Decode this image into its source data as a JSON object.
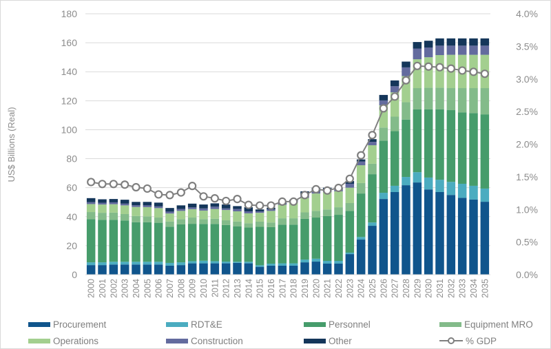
{
  "chart_data": {
    "type": "bar",
    "subtype": "stacked-bar-with-line",
    "title": "",
    "xlabel": "",
    "ylabel": "US$ Billions (Real)",
    "y2label": "",
    "ylim": [
      0,
      180
    ],
    "y2lim": [
      0,
      4.0
    ],
    "yticks": [
      "0",
      "20",
      "40",
      "60",
      "80",
      "100",
      "120",
      "140",
      "160",
      "180"
    ],
    "y2ticks": [
      "0.0%",
      "0.5%",
      "1.0%",
      "1.5%",
      "2.0%",
      "2.5%",
      "3.0%",
      "3.5%",
      "4.0%"
    ],
    "grid": true,
    "legend_position": "bottom",
    "categories": [
      "2000",
      "2001",
      "2002",
      "2003",
      "2004",
      "2005",
      "2006",
      "2007",
      "2008",
      "2009",
      "2010",
      "2011",
      "2012",
      "2013",
      "2014",
      "2015",
      "2016",
      "2017",
      "2018",
      "2019",
      "2020",
      "2021",
      "2022",
      "2023",
      "2024",
      "2025",
      "2026",
      "2027",
      "2028",
      "2029",
      "2030",
      "2031",
      "2032",
      "2033",
      "2034",
      "2035"
    ],
    "series": [
      {
        "name": "Procurement",
        "color": "#10558c",
        "values": [
          6.6,
          6.6,
          7.0,
          7.0,
          7.0,
          7.0,
          7.0,
          6.2,
          6.6,
          7.8,
          7.8,
          7.8,
          7.8,
          8.1,
          7.8,
          5.4,
          6.2,
          6.2,
          6.2,
          8.5,
          9.0,
          7.6,
          7.6,
          14.2,
          24.2,
          33.7,
          52.2,
          57.0,
          61.7,
          63.6,
          58.8,
          57.0,
          55.0,
          53.0,
          51.8,
          50.3
        ]
      },
      {
        "name": "RDT&E",
        "color": "#4bacc0",
        "values": [
          1.9,
          1.9,
          1.9,
          1.9,
          1.9,
          1.9,
          1.9,
          1.9,
          1.9,
          1.5,
          1.8,
          1.5,
          1.2,
          0.8,
          1.1,
          1.1,
          1.4,
          1.6,
          1.6,
          1.9,
          2.0,
          1.9,
          1.9,
          1.0,
          1.8,
          2.3,
          4.3,
          4.3,
          5.7,
          7.1,
          8.2,
          8.5,
          9.0,
          9.7,
          9.5,
          9.1
        ]
      },
      {
        "name": "Personnel",
        "color": "#469c6b",
        "values": [
          29.8,
          29.3,
          28.9,
          28.5,
          27.3,
          27.3,
          26.9,
          25.0,
          26.2,
          25.8,
          25.4,
          25.7,
          25.3,
          24.5,
          23.7,
          26.5,
          25.2,
          26.7,
          26.7,
          28.1,
          28.4,
          30.9,
          31.8,
          28.8,
          30.0,
          33.3,
          36.0,
          37.7,
          39.6,
          43.3,
          47.0,
          48.5,
          49.5,
          49.3,
          50.2,
          51.2
        ]
      },
      {
        "name": "Equipment MRO",
        "color": "#83bb8a",
        "values": [
          4.9,
          4.9,
          5.0,
          4.4,
          4.3,
          4.0,
          3.6,
          3.6,
          3.6,
          4.3,
          3.3,
          3.6,
          3.2,
          3.3,
          2.9,
          3.6,
          3.2,
          4.4,
          4.4,
          4.5,
          4.6,
          4.6,
          5.2,
          5.4,
          7.2,
          7.2,
          9.0,
          10.0,
          12.0,
          14.7,
          15.0,
          15.0,
          15.2,
          16.7,
          17.2,
          18.1
        ]
      },
      {
        "name": "Operations",
        "color": "#a3cf8f",
        "values": [
          5.5,
          5.7,
          5.8,
          6.0,
          6.2,
          6.4,
          6.5,
          5.5,
          5.7,
          5.8,
          5.9,
          6.7,
          7.1,
          7.0,
          6.8,
          6.1,
          8.0,
          9.3,
          11.0,
          10.0,
          12.0,
          12.0,
          11.0,
          10.6,
          12.3,
          12.8,
          15.3,
          16.8,
          18.0,
          19.9,
          21.0,
          22.5,
          23.0,
          23.0,
          23.0,
          23.0
        ]
      },
      {
        "name": "Construction",
        "color": "#636b9e",
        "values": [
          1.3,
          1.2,
          1.3,
          1.2,
          1.2,
          1.2,
          1.2,
          1.3,
          1.3,
          1.2,
          1.5,
          1.6,
          1.1,
          1.6,
          1.4,
          1.0,
          1.0,
          0.7,
          0.8,
          1.6,
          1.5,
          1.5,
          1.3,
          2.7,
          2.5,
          2.3,
          3.4,
          4.2,
          6.0,
          7.4,
          6.7,
          6.5,
          6.3,
          6.3,
          6.3,
          6.3
        ]
      },
      {
        "name": "Other",
        "color": "#14365a",
        "values": [
          2.8,
          2.4,
          2.3,
          2.7,
          2.3,
          2.4,
          2.6,
          2.5,
          2.5,
          2.6,
          2.7,
          2.3,
          2.7,
          2.0,
          2.8,
          1.3,
          1.2,
          0.8,
          0.9,
          2.9,
          2.5,
          1.5,
          1.2,
          1.9,
          1.5,
          1.9,
          3.8,
          4.0,
          4.0,
          4.5,
          4.7,
          5.0,
          5.0,
          5.0,
          5.0,
          5.0
        ]
      }
    ],
    "line_series": {
      "name": "% GDP",
      "axis": "right",
      "color": "#7f7f7f",
      "values": [
        1.42,
        1.39,
        1.39,
        1.38,
        1.34,
        1.32,
        1.23,
        1.22,
        1.26,
        1.36,
        1.2,
        1.17,
        1.13,
        1.16,
        1.07,
        1.06,
        1.06,
        1.12,
        1.12,
        1.22,
        1.31,
        1.29,
        1.33,
        1.47,
        1.83,
        2.14,
        2.55,
        2.73,
        2.98,
        3.2,
        3.19,
        3.18,
        3.16,
        3.13,
        3.11,
        3.08
      ]
    }
  },
  "legend": {
    "items": [
      {
        "label": "Procurement",
        "color": "#10558c",
        "kind": "swatch"
      },
      {
        "label": "RDT&E",
        "color": "#4bacc0",
        "kind": "swatch"
      },
      {
        "label": "Personnel",
        "color": "#469c6b",
        "kind": "swatch"
      },
      {
        "label": "Equipment MRO",
        "color": "#83bb8a",
        "kind": "swatch"
      },
      {
        "label": "Operations",
        "color": "#a3cf8f",
        "kind": "swatch"
      },
      {
        "label": "Construction",
        "color": "#636b9e",
        "kind": "swatch"
      },
      {
        "label": "Other",
        "color": "#14365a",
        "kind": "swatch"
      },
      {
        "label": "% GDP",
        "color": "#7f7f7f",
        "kind": "line-marker"
      }
    ]
  }
}
